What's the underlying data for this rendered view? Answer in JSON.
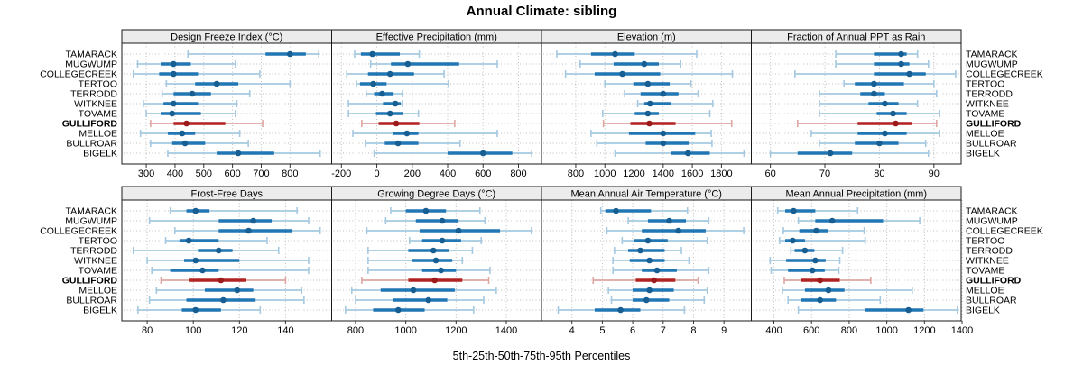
{
  "title": "Annual Climate: sibling",
  "xlabel": "5th-25th-50th-75th-95th Percentiles",
  "percentile_labels": [
    "5th",
    "25th",
    "50th",
    "75th",
    "95th"
  ],
  "sites": [
    "TAMARACK",
    "MUGWUMP",
    "COLLEGECREEK",
    "TERTOO",
    "TERRODD",
    "WITKNEE",
    "TOVAME",
    "GULLIFORD",
    "MELLOE",
    "BULLROAR",
    "BIGELK"
  ],
  "highlight_site": "GULLIFORD",
  "colors": {
    "blue_light": "#a5c9e1",
    "blue_main": "#2077b4",
    "blue_dot": "#175e92",
    "red_light": "#dea6a2",
    "red_main": "#b22222",
    "red_dot": "#9c1a1a",
    "strip_fill": "#ececec",
    "panel_border": "#1a1a1a",
    "grid": "#bdbdbd",
    "tick": "#333333"
  },
  "chart_data": [
    {
      "type": "dotplot-interval",
      "row": 0,
      "col": 0,
      "title": "Design Freeze Index (°C)",
      "xlim": [
        215,
        945
      ],
      "ticks": [
        300,
        400,
        500,
        600,
        700,
        800
      ],
      "values": [
        [
          445,
          715,
          800,
          855,
          900
        ],
        [
          270,
          350,
          395,
          455,
          610
        ],
        [
          255,
          345,
          395,
          480,
          695
        ],
        [
          370,
          470,
          545,
          620,
          800
        ],
        [
          355,
          395,
          460,
          525,
          660
        ],
        [
          290,
          360,
          395,
          480,
          615
        ],
        [
          300,
          350,
          390,
          490,
          610
        ],
        [
          315,
          395,
          440,
          575,
          705
        ],
        [
          280,
          375,
          425,
          470,
          625
        ],
        [
          315,
          390,
          435,
          505,
          655
        ],
        [
          375,
          545,
          620,
          745,
          905
        ]
      ]
    },
    {
      "type": "dotplot-interval",
      "row": 0,
      "col": 1,
      "title": "Effective Precipitation (mm)",
      "xlim": [
        -255,
        930
      ],
      "ticks": [
        -200,
        0,
        200,
        400,
        600,
        800
      ],
      "values": [
        [
          -125,
          -90,
          -25,
          130,
          240
        ],
        [
          -35,
          80,
          175,
          465,
          680
        ],
        [
          -170,
          -50,
          75,
          210,
          380
        ],
        [
          -115,
          -95,
          -20,
          55,
          405
        ],
        [
          -60,
          -15,
          30,
          95,
          145
        ],
        [
          -160,
          35,
          105,
          135,
          145
        ],
        [
          -160,
          -5,
          75,
          150,
          235
        ],
        [
          -85,
          10,
          110,
          240,
          440
        ],
        [
          -135,
          90,
          170,
          235,
          680
        ],
        [
          -65,
          45,
          120,
          235,
          470
        ],
        [
          -15,
          400,
          600,
          765,
          875
        ]
      ]
    },
    {
      "type": "dotplot-interval",
      "row": 0,
      "col": 2,
      "title": "Elevation (m)",
      "xlim": [
        565,
        2005
      ],
      "ticks": [
        800,
        1000,
        1200,
        1400,
        1600,
        1800
      ],
      "values": [
        [
          670,
          905,
          1070,
          1205,
          1630
        ],
        [
          830,
          1060,
          1270,
          1370,
          1520
        ],
        [
          730,
          930,
          1120,
          1380,
          1875
        ],
        [
          1000,
          1195,
          1295,
          1445,
          1590
        ],
        [
          1135,
          1245,
          1400,
          1505,
          1640
        ],
        [
          1225,
          1270,
          1310,
          1455,
          1740
        ],
        [
          985,
          1205,
          1295,
          1370,
          1720
        ],
        [
          990,
          1175,
          1305,
          1485,
          1870
        ],
        [
          905,
          1165,
          1400,
          1620,
          1730
        ],
        [
          945,
          1280,
          1400,
          1575,
          1735
        ],
        [
          1070,
          1455,
          1570,
          1720,
          1955
        ]
      ]
    },
    {
      "type": "dotplot-interval",
      "row": 0,
      "col": 3,
      "title": "Fraction of Annual PPT as Rain",
      "xlim": [
        56.5,
        95
      ],
      "ticks": [
        60,
        70,
        80,
        90
      ],
      "values": [
        [
          72,
          79,
          84,
          85,
          87
        ],
        [
          72,
          79,
          84,
          85.5,
          89
        ],
        [
          64.5,
          79,
          85.5,
          88.5,
          94
        ],
        [
          73.5,
          75.5,
          79,
          84.5,
          90
        ],
        [
          69,
          76.5,
          79,
          81,
          90.5
        ],
        [
          69,
          78,
          81,
          83.5,
          87
        ],
        [
          69,
          79.5,
          82.5,
          85,
          91
        ],
        [
          65,
          76,
          83,
          86,
          90.5
        ],
        [
          67.5,
          76,
          81,
          85,
          91
        ],
        [
          69,
          75.5,
          80,
          83.5,
          88.5
        ],
        [
          60,
          65,
          71,
          75,
          89
        ]
      ]
    },
    {
      "type": "dotplot-interval",
      "row": 1,
      "col": 0,
      "title": "Frost-Free Days",
      "xlim": [
        69,
        160
      ],
      "ticks": [
        80,
        100,
        120,
        140
      ],
      "values": [
        [
          90,
          97,
          101,
          107,
          145
        ],
        [
          81,
          111,
          126,
          134,
          150
        ],
        [
          92,
          111,
          124,
          143,
          155
        ],
        [
          88,
          94,
          98,
          111,
          132
        ],
        [
          74,
          102,
          111,
          117,
          137
        ],
        [
          80,
          96,
          101,
          120,
          150
        ],
        [
          82,
          90,
          104,
          111,
          150
        ],
        [
          86,
          98,
          112,
          123,
          140
        ],
        [
          84,
          105,
          119,
          126,
          147
        ],
        [
          81,
          97,
          113,
          127,
          148
        ],
        [
          76,
          95,
          101,
          112,
          129
        ]
      ]
    },
    {
      "type": "dotplot-interval",
      "row": 1,
      "col": 1,
      "title": "Growing Degree Days (°C)",
      "xlim": [
        705,
        1540
      ],
      "ticks": [
        800,
        1000,
        1200,
        1400
      ],
      "values": [
        [
          940,
          1000,
          1080,
          1160,
          1295
        ],
        [
          920,
          1040,
          1145,
          1210,
          1315
        ],
        [
          845,
          1055,
          1210,
          1375,
          1500
        ],
        [
          1015,
          1065,
          1145,
          1220,
          1300
        ],
        [
          850,
          1010,
          1110,
          1170,
          1265
        ],
        [
          850,
          1025,
          1120,
          1185,
          1225
        ],
        [
          850,
          1065,
          1140,
          1200,
          1335
        ],
        [
          825,
          1010,
          1115,
          1225,
          1330
        ],
        [
          785,
          900,
          1030,
          1195,
          1360
        ],
        [
          800,
          950,
          1090,
          1165,
          1310
        ],
        [
          760,
          870,
          970,
          1075,
          1270
        ]
      ]
    },
    {
      "type": "dotplot-interval",
      "row": 1,
      "col": 2,
      "title": "Mean Annual Air Temperature (°C)",
      "xlim": [
        3.0,
        9.9
      ],
      "ticks": [
        4,
        5,
        6,
        7,
        8,
        9
      ],
      "values": [
        [
          4.95,
          5.1,
          5.45,
          6.6,
          7.8
        ],
        [
          5.85,
          6.5,
          7.2,
          7.75,
          8.5
        ],
        [
          5.15,
          6.3,
          7.5,
          8.4,
          9.65
        ],
        [
          5.65,
          6.05,
          6.5,
          7.15,
          8.45
        ],
        [
          5.4,
          5.85,
          6.25,
          7.05,
          7.6
        ],
        [
          5.35,
          5.9,
          6.55,
          7.05,
          7.85
        ],
        [
          5.35,
          6.3,
          6.8,
          7.45,
          8.5
        ],
        [
          4.7,
          6.1,
          6.7,
          7.4,
          8.15
        ],
        [
          5.2,
          6.0,
          6.55,
          7.35,
          8.45
        ],
        [
          5.3,
          6.0,
          6.45,
          7.2,
          8.35
        ],
        [
          3.55,
          4.75,
          5.6,
          6.25,
          7.7
        ]
      ]
    },
    {
      "type": "dotplot-interval",
      "row": 1,
      "col": 3,
      "title": "Mean Annual Precipitation (mm)",
      "xlim": [
        280,
        1395
      ],
      "ticks": [
        400,
        600,
        800,
        1000,
        1200,
        1400
      ],
      "values": [
        [
          420,
          460,
          505,
          620,
          845
        ],
        [
          530,
          620,
          710,
          980,
          1175
        ],
        [
          450,
          535,
          625,
          690,
          880
        ],
        [
          430,
          460,
          500,
          565,
          885
        ],
        [
          490,
          510,
          565,
          615,
          765
        ],
        [
          380,
          465,
          620,
          675,
          750
        ],
        [
          385,
          475,
          605,
          670,
          745
        ],
        [
          455,
          545,
          645,
          750,
          915
        ],
        [
          445,
          565,
          690,
          775,
          1135
        ],
        [
          475,
          545,
          645,
          730,
          965
        ],
        [
          530,
          885,
          1115,
          1195,
          1375
        ]
      ]
    }
  ]
}
